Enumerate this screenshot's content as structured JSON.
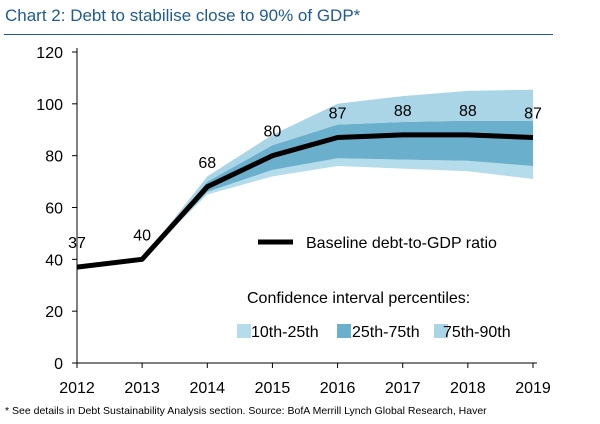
{
  "chart_data": {
    "type": "area",
    "title": "Chart 2: Debt to stabilise close to 90% of GDP*",
    "xlabel": "",
    "ylabel": "",
    "x": [
      "2012",
      "2013",
      "2014",
      "2015",
      "2016",
      "2017",
      "2018",
      "2019"
    ],
    "ylim": [
      0,
      120
    ],
    "yticks": [
      0,
      20,
      40,
      60,
      80,
      100,
      120
    ],
    "series": [
      {
        "name": "Baseline debt-to-GDP ratio",
        "values": [
          37,
          40,
          68,
          80,
          87,
          88,
          88,
          87
        ]
      }
    ],
    "bands": [
      {
        "name": "10th-25th",
        "lower": [
          37,
          40,
          65,
          72,
          76,
          75,
          74,
          71
        ],
        "upper": [
          37,
          40,
          66,
          74.5,
          79,
          78.5,
          78,
          76
        ]
      },
      {
        "name": "25th-75th",
        "lower": [
          37,
          40,
          66,
          74.5,
          79,
          78.5,
          78,
          76
        ],
        "upper": [
          37,
          40,
          70,
          84,
          92,
          93,
          93.5,
          93.5
        ]
      },
      {
        "name": "75th-90th",
        "lower": [
          37,
          40,
          70,
          84,
          92,
          93,
          93.5,
          93.5
        ],
        "upper": [
          37,
          40,
          72,
          88,
          100,
          103,
          105,
          105.5
        ]
      }
    ],
    "data_labels": [
      "37",
      "40",
      "68",
      "80",
      "87",
      "88",
      "88",
      "87"
    ],
    "grid": false,
    "legend": {
      "title": "Confidence interval percentiles:",
      "position": "lower-right"
    },
    "colors": {
      "baseline": "#000000",
      "band_outer": "#b5dcea",
      "band_inner": "#6aafcb",
      "band_upper": "#a9d5e6",
      "title": "#1f5a94"
    }
  },
  "footnote": "* See details in Debt Sustainability Analysis section. Source: BofA Merrill Lynch Global Research, Haver"
}
